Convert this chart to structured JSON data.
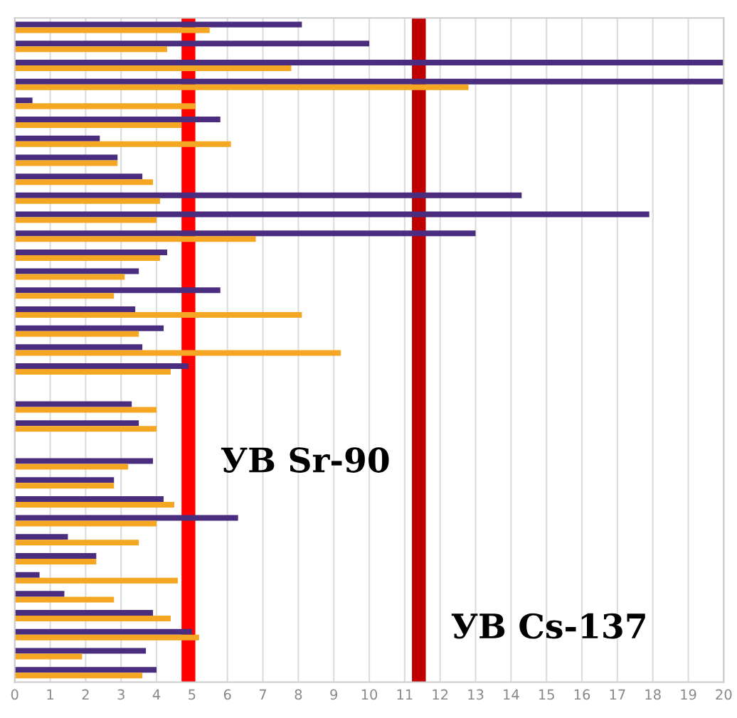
{
  "chart_data": {
    "type": "bar",
    "orientation": "horizontal",
    "categories": [
      null,
      null,
      null,
      null,
      null,
      null,
      null,
      null,
      null,
      null,
      null,
      null,
      null,
      null,
      null,
      null,
      null,
      null,
      null,
      null,
      null,
      null,
      null,
      null,
      null,
      null,
      null,
      null,
      null,
      null,
      null,
      null,
      null,
      null,
      null
    ],
    "series": [
      {
        "color": "#4b2d7f",
        "values": [
          8.1,
          10.0,
          20,
          20,
          0.5,
          5.8,
          2.4,
          2.9,
          3.6,
          14.3,
          17.9,
          13.0,
          4.3,
          3.5,
          5.8,
          3.4,
          4.2,
          3.6,
          4.9,
          null,
          3.3,
          3.5,
          null,
          3.9,
          2.8,
          4.2,
          6.3,
          1.5,
          2.3,
          0.7,
          1.4,
          3.9,
          5.0,
          3.7,
          4.0
        ]
      },
      {
        "color": "#f5a623",
        "values": [
          5.5,
          4.3,
          7.8,
          12.8,
          5.1,
          4.7,
          6.1,
          2.9,
          3.9,
          4.1,
          4.0,
          6.8,
          4.1,
          3.1,
          2.8,
          8.1,
          3.5,
          9.2,
          4.4,
          null,
          4.0,
          4.0,
          null,
          3.2,
          2.8,
          4.5,
          4.0,
          3.5,
          2.3,
          4.6,
          2.8,
          4.4,
          5.2,
          1.9,
          3.6
        ]
      }
    ],
    "xlim": [
      0,
      20
    ],
    "xticks": [
      0,
      1,
      2,
      3,
      4,
      5,
      6,
      7,
      8,
      9,
      10,
      11,
      12,
      13,
      14,
      15,
      16,
      17,
      18,
      19,
      20
    ],
    "tick_labels": "x",
    "grid": "x",
    "ref_lines": [
      {
        "axis": "x",
        "value": 4.9,
        "label": "УВ Sr-90",
        "color": "#ff0000"
      },
      {
        "axis": "x",
        "value": 11.4,
        "label": "УВ Cs-137",
        "color": "#c00000"
      }
    ]
  }
}
